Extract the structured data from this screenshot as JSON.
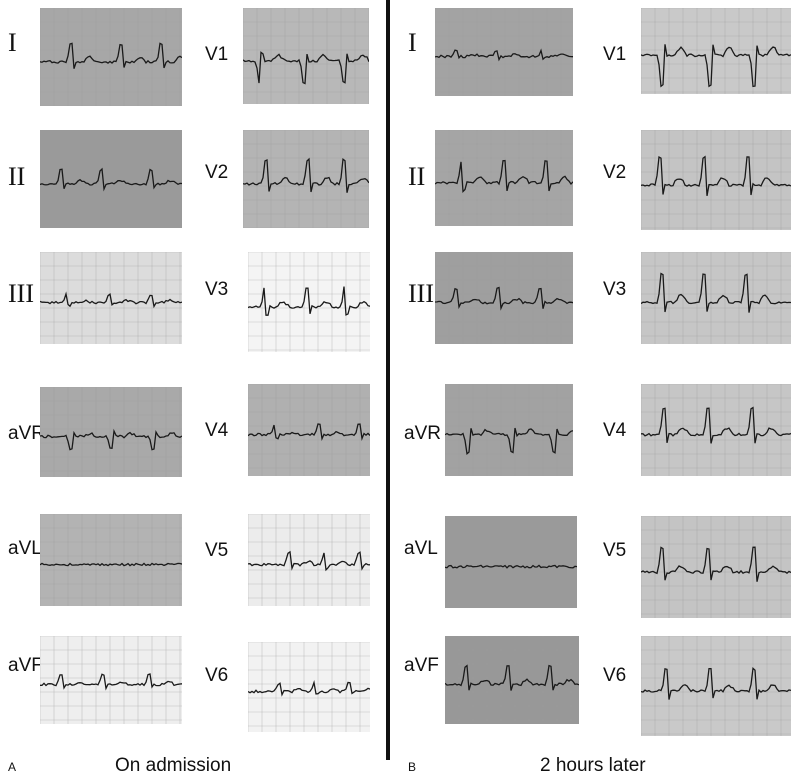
{
  "panels": [
    {
      "letter": "A",
      "caption": "On admission",
      "leads": [
        "I",
        "II",
        "III",
        "aVR",
        "aVL",
        "aVF",
        "V1",
        "V2",
        "V3",
        "V4",
        "V5",
        "V6"
      ]
    },
    {
      "letter": "B",
      "caption": "2 hours later",
      "leads": [
        "I",
        "II",
        "III",
        "aVR",
        "aVL",
        "aVF",
        "V1",
        "V2",
        "V3",
        "V4",
        "V5",
        "V6"
      ]
    }
  ],
  "colors": {
    "trace": "#1a1a1a",
    "grid_minor": "#9c9c9c",
    "divider": "#111111"
  }
}
